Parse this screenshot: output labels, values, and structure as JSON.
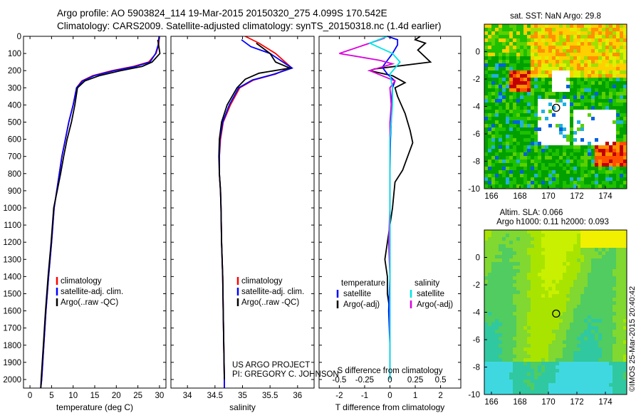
{
  "header": {
    "line1": "Argo profile: AO 5903824_114 19-Mar-2015 20150320_275 4.099S 170.542E",
    "line2": "Climatology: CARS2009. Satellite-adjusted climatology: synTS_20150318.nc (1.4d earlier)"
  },
  "colors": {
    "climatology": "#ff0000",
    "satellite": "#0000ff",
    "argo": "#000000",
    "satellite_s": "#00e5e5",
    "argo_s": "#dd00dd"
  },
  "depth_ticks": [
    0,
    100,
    200,
    300,
    400,
    500,
    600,
    700,
    800,
    900,
    1000,
    1100,
    1200,
    1300,
    1400,
    1500,
    1600,
    1700,
    1800,
    1900,
    2000
  ],
  "chart_data": [
    {
      "type": "line",
      "id": "temperature",
      "xlabel": "temperature (deg C)",
      "xlim": [
        -1.5,
        31.5
      ],
      "ylim": [
        2050,
        0
      ],
      "xticks": [
        0,
        5,
        10,
        15,
        20,
        25,
        30
      ],
      "legend": [
        "climatology",
        "satellite-adj. clim.",
        "Argo(..raw -QC)"
      ],
      "legend_placement": "lower-center",
      "series": [
        {
          "role": "climatology",
          "points": [
            [
              30,
              0
            ],
            [
              29.8,
              50
            ],
            [
              29.2,
              100
            ],
            [
              27.5,
              150
            ],
            [
              24,
              175
            ],
            [
              19,
              200
            ],
            [
              14.5,
              230
            ],
            [
              12,
              260
            ],
            [
              10.8,
              300
            ],
            [
              10,
              400
            ],
            [
              9,
              500
            ],
            [
              8.2,
              600
            ],
            [
              7.4,
              700
            ],
            [
              6.8,
              800
            ],
            [
              6.2,
              900
            ],
            [
              5.6,
              1000
            ],
            [
              5,
              1200
            ],
            [
              4.3,
              1400
            ],
            [
              3.7,
              1600
            ],
            [
              3.2,
              1800
            ],
            [
              2.7,
              2000
            ],
            [
              2.5,
              2050
            ]
          ]
        },
        {
          "role": "satellite",
          "points": [
            [
              29.9,
              0
            ],
            [
              29.7,
              50
            ],
            [
              29.1,
              100
            ],
            [
              27.8,
              150
            ],
            [
              24.5,
              175
            ],
            [
              19.5,
              200
            ],
            [
              14.8,
              230
            ],
            [
              12.2,
              260
            ],
            [
              10.8,
              300
            ],
            [
              10,
              400
            ],
            [
              9,
              500
            ],
            [
              8.2,
              600
            ],
            [
              7.4,
              700
            ],
            [
              6.8,
              800
            ],
            [
              6.2,
              900
            ],
            [
              5.6,
              1000
            ],
            [
              5,
              1200
            ],
            [
              4.3,
              1400
            ],
            [
              3.7,
              1600
            ],
            [
              3.2,
              1800
            ],
            [
              2.7,
              2000
            ],
            [
              2.5,
              2050
            ]
          ]
        },
        {
          "role": "argo",
          "points": [
            [
              29.6,
              20
            ],
            [
              29.8,
              50
            ],
            [
              30.1,
              100
            ],
            [
              28.3,
              150
            ],
            [
              26,
              175
            ],
            [
              21,
              200
            ],
            [
              16,
              230
            ],
            [
              12.7,
              260
            ],
            [
              11,
              300
            ],
            [
              10.4,
              400
            ],
            [
              9.6,
              500
            ],
            [
              8.6,
              600
            ],
            [
              7.8,
              700
            ],
            [
              7.1,
              800
            ],
            [
              6.3,
              900
            ],
            [
              5.5,
              1000
            ],
            [
              4.9,
              1200
            ],
            [
              4.2,
              1400
            ],
            [
              3.6,
              1600
            ],
            [
              3.1,
              1800
            ],
            [
              2.6,
              2000
            ],
            [
              2.5,
              2050
            ]
          ]
        }
      ]
    },
    {
      "type": "line",
      "id": "salinity",
      "xlabel": "salinity",
      "xlim": [
        33.7,
        36.3
      ],
      "ylim": [
        2050,
        0
      ],
      "xticks": [
        34,
        34.5,
        35,
        35.5,
        36
      ],
      "legend": [
        "climatology",
        "satellite-adj. clim.",
        "Argo(..raw -QC)"
      ],
      "legend_placement": "lower-center",
      "annotation": [
        "US ARGO PROJECT",
        "PI: GREGORY C. JOHNSON"
      ],
      "series": [
        {
          "role": "climatology",
          "points": [
            [
              35.05,
              0
            ],
            [
              35.3,
              40
            ],
            [
              35.6,
              100
            ],
            [
              35.88,
              180
            ],
            [
              35.6,
              220
            ],
            [
              35.2,
              255
            ],
            [
              34.95,
              300
            ],
            [
              34.78,
              400
            ],
            [
              34.65,
              500
            ],
            [
              34.6,
              600
            ],
            [
              34.58,
              700
            ],
            [
              34.58,
              800
            ],
            [
              34.6,
              900
            ],
            [
              34.61,
              1000
            ],
            [
              34.62,
              1200
            ],
            [
              34.64,
              1400
            ],
            [
              34.65,
              1600
            ],
            [
              34.66,
              1800
            ],
            [
              34.67,
              2000
            ],
            [
              34.67,
              2050
            ]
          ]
        },
        {
          "role": "satellite",
          "points": [
            [
              34.98,
              20
            ],
            [
              35.15,
              60
            ],
            [
              35.5,
              100
            ],
            [
              35.9,
              185
            ],
            [
              35.58,
              220
            ],
            [
              35.18,
              255
            ],
            [
              34.93,
              300
            ],
            [
              34.76,
              400
            ],
            [
              34.64,
              500
            ],
            [
              34.59,
              600
            ],
            [
              34.58,
              700
            ],
            [
              34.58,
              800
            ],
            [
              34.6,
              900
            ],
            [
              34.61,
              1000
            ],
            [
              34.62,
              1200
            ],
            [
              34.64,
              1400
            ],
            [
              34.65,
              1600
            ],
            [
              34.66,
              1800
            ],
            [
              34.67,
              2000
            ],
            [
              34.67,
              2050
            ]
          ]
        },
        {
          "role": "argo",
          "points": [
            [
              35.25,
              40
            ],
            [
              35.5,
              100
            ],
            [
              35.6,
              150
            ],
            [
              35.86,
              185
            ],
            [
              35.3,
              215
            ],
            [
              35.05,
              250
            ],
            [
              34.9,
              300
            ],
            [
              34.72,
              400
            ],
            [
              34.62,
              500
            ],
            [
              34.58,
              600
            ],
            [
              34.57,
              700
            ],
            [
              34.58,
              800
            ],
            [
              34.6,
              900
            ],
            [
              34.61,
              1000
            ],
            [
              34.62,
              1200
            ],
            [
              34.64,
              1400
            ],
            [
              34.65,
              1600
            ],
            [
              34.66,
              1800
            ],
            [
              34.67,
              2000
            ]
          ]
        }
      ]
    },
    {
      "type": "line",
      "id": "difference",
      "xlabel": "T difference from climatology",
      "xlabel2": "S difference from climatology",
      "xlim": [
        -2.8,
        2.8
      ],
      "ylim": [
        2050,
        0
      ],
      "xticks": [
        -2,
        -1,
        0,
        1,
        2
      ],
      "s_ticks": [
        "-0.5",
        "-0.25",
        "0",
        "0.25",
        "0.5"
      ],
      "s_tick_x": [
        -2,
        -1,
        0,
        1,
        2
      ],
      "legend_t": {
        "title": "temperature",
        "items": [
          "satellite",
          "Argo(-adj)"
        ]
      },
      "legend_s": {
        "title": "salinity",
        "items": [
          "satellite",
          "Argo(-adj)"
        ]
      },
      "series": [
        {
          "role": "argo_t",
          "points": [
            [
              1.2,
              0
            ],
            [
              1.0,
              20
            ],
            [
              1.4,
              40
            ],
            [
              1.1,
              80
            ],
            [
              1.6,
              150
            ],
            [
              -0.6,
              190
            ],
            [
              -0.8,
              200
            ],
            [
              0.1,
              230
            ],
            [
              0.6,
              270
            ],
            [
              0.2,
              300
            ],
            [
              0.3,
              350
            ],
            [
              0.6,
              450
            ],
            [
              0.8,
              550
            ],
            [
              0.9,
              620
            ],
            [
              0.7,
              700
            ],
            [
              0.5,
              780
            ],
            [
              0.2,
              850
            ],
            [
              0.1,
              1000
            ],
            [
              0.0,
              1100
            ],
            [
              -0.1,
              1200
            ],
            [
              -0.2,
              1300
            ],
            [
              -0.1,
              1400
            ],
            [
              -0.1,
              1500
            ],
            [
              0.0,
              1600
            ],
            [
              0.0,
              1800
            ],
            [
              0.0,
              2000
            ]
          ]
        },
        {
          "role": "satellite_t",
          "points": [
            [
              -0.1,
              0
            ],
            [
              0.3,
              20
            ],
            [
              0.3,
              50
            ],
            [
              0.1,
              100
            ],
            [
              -0.3,
              180
            ],
            [
              -0.1,
              220
            ],
            [
              0.2,
              260
            ],
            [
              0.1,
              300
            ],
            [
              0.05,
              400
            ],
            [
              0.05,
              500
            ],
            [
              0.02,
              600
            ],
            [
              0.0,
              800
            ],
            [
              0.0,
              1000
            ],
            [
              0.0,
              1200
            ],
            [
              0.0,
              1400
            ],
            [
              -0.05,
              1600
            ],
            [
              0.0,
              1800
            ],
            [
              0.0,
              2000
            ]
          ]
        },
        {
          "role": "argo_s",
          "points": [
            [
              -0.2,
              10
            ],
            [
              -2.0,
              100
            ],
            [
              -0.4,
              140
            ],
            [
              0.1,
              160
            ],
            [
              -0.8,
              200
            ],
            [
              -0.3,
              230
            ],
            [
              0.2,
              260
            ],
            [
              0.0,
              300
            ],
            [
              0.05,
              400
            ],
            [
              0.0,
              500
            ],
            [
              0.0,
              600
            ],
            [
              0.0,
              800
            ],
            [
              0.0,
              1000
            ],
            [
              -0.05,
              1200
            ],
            [
              0.0,
              1400
            ],
            [
              0.0,
              1600
            ],
            [
              0.0,
              1800
            ],
            [
              0.0,
              2000
            ]
          ]
        },
        {
          "role": "satellite_s",
          "points": [
            [
              -0.1,
              0
            ],
            [
              -0.8,
              40
            ],
            [
              0.1,
              100
            ],
            [
              0.4,
              150
            ],
            [
              0.0,
              220
            ],
            [
              0.1,
              300
            ],
            [
              0.1,
              400
            ],
            [
              0.05,
              500
            ],
            [
              0.0,
              600
            ],
            [
              0.0,
              800
            ],
            [
              0.0,
              1000
            ],
            [
              0.0,
              1200
            ],
            [
              0.0,
              1400
            ],
            [
              0.0,
              1600
            ],
            [
              0.0,
              1800
            ],
            [
              0.0,
              2000
            ]
          ]
        }
      ]
    },
    {
      "type": "heatmap",
      "id": "sst_map",
      "title": "sat. SST: NaN Argo: 29.8",
      "xlim": [
        165.5,
        175.5
      ],
      "ylim": [
        -10,
        2
      ],
      "xticks": [
        166,
        168,
        170,
        172,
        174
      ],
      "yticks": [
        0,
        -2,
        -4,
        -6,
        -8,
        -10
      ],
      "marker": {
        "lon": 170.542,
        "lat": -4.099
      },
      "colors": [
        "#00a000",
        "#1ec000",
        "#5cd000",
        "#a0e000",
        "#e0f000",
        "#ffd000",
        "#ff9000",
        "#ff5000",
        "#c00000",
        "#20b0e0",
        "#0060e0"
      ]
    },
    {
      "type": "heatmap",
      "id": "sla_map",
      "title": "Altim. SLA: 0.066",
      "title2": "Argo h1000: 0.11 h2000: 0.093",
      "xlim": [
        165.5,
        175.5
      ],
      "ylim": [
        -10,
        2
      ],
      "xticks": [
        166,
        168,
        170,
        172,
        174
      ],
      "yticks": [
        0,
        -2,
        -4,
        -6,
        -8,
        -10
      ],
      "marker": {
        "lon": 170.542,
        "lat": -4.099
      },
      "colors": [
        "#c8f000",
        "#a8e400",
        "#80d830",
        "#50cc60",
        "#30c8a0",
        "#40d8e0"
      ]
    }
  ],
  "footer_stamp": "©IMOS 25-Mar-2015 20:40:42"
}
